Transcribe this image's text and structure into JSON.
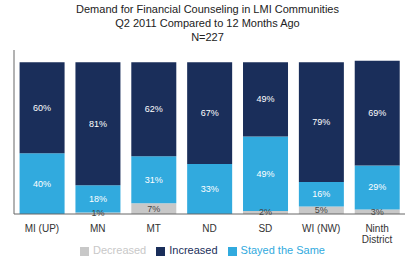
{
  "chart_data": {
    "type": "bar",
    "title": "Demand for Financial Counseling in LMI Communities\nQ2 2011 Compared to 12 Months Ago\nN=227",
    "categories": [
      "MI (UP)",
      "MN",
      "MT",
      "ND",
      "SD",
      "WI (NW)",
      "Ninth District"
    ],
    "series": [
      {
        "name": "Decreased",
        "color": "#c8c8c8",
        "values": [
          0,
          1,
          7,
          0,
          2,
          5,
          3
        ],
        "value_labels": [
          null,
          "1%",
          "7%",
          null,
          "2%",
          "5%",
          "3%"
        ]
      },
      {
        "name": "Stayed the Same",
        "color": "#31aade",
        "values": [
          40,
          18,
          31,
          33,
          49,
          16,
          29
        ],
        "value_labels": [
          "40%",
          "18%",
          "31%",
          "33%",
          "49%",
          "16%",
          "29%"
        ]
      },
      {
        "name": "Increased",
        "color": "#1a2e5a",
        "values": [
          60,
          81,
          62,
          67,
          49,
          79,
          69
        ],
        "value_labels": [
          "60%",
          "81%",
          "62%",
          "67%",
          "49%",
          "79%",
          "69%"
        ]
      }
    ],
    "ylim": [
      0,
      108
    ],
    "stacked": true,
    "data_labels": true,
    "tick_labels": "x",
    "grid": false,
    "legend": "bottom"
  }
}
